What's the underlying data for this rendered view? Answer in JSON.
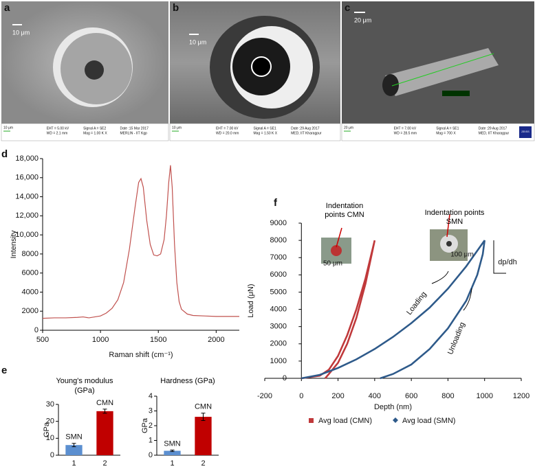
{
  "images": [
    {
      "panel": "a",
      "scale_bar": "10 μm",
      "info": [
        "10 μm",
        "EHT = 5.00 kV",
        "WD = 2.1 mm",
        "Signal A = SE2",
        "Mag = 1.00 K X",
        "Date :15 Mar 2017",
        "MERLIN - IIT Kgp"
      ]
    },
    {
      "panel": "b",
      "scale_bar": "10 μm",
      "info": [
        "10 μm",
        "EHT = 7.00 kV",
        "WD = 20.0 mm",
        "Signal A = SE1",
        "Mag = 1.50 K X",
        "Date :29 Aug 2017",
        "MED, IIT Kharagpur"
      ]
    },
    {
      "panel": "c",
      "scale_bar": "20 μm",
      "info": [
        "20 μm",
        "EHT = 7.00 kV",
        "WD = 28.5 mm",
        "Signal A = SE1",
        "Mag = 700 X",
        "Date :29 Aug 2017",
        "MED, IIT Kharagpur",
        "ZEISS"
      ]
    }
  ],
  "chart_data": [
    {
      "type": "line",
      "panel": "d",
      "x_label": "Raman shift (cm⁻¹)",
      "y_label": "Intensity",
      "xlim": [
        500,
        2200
      ],
      "xticks": [
        500,
        1000,
        1500,
        2000
      ],
      "ylim": [
        0,
        18000
      ],
      "yticks": [
        0,
        2000,
        4000,
        6000,
        8000,
        {
          "value": 10000,
          "label": "10,000"
        },
        {
          "value": 12000,
          "label": "12,000"
        },
        {
          "value": 14000,
          "label": "14,000"
        },
        {
          "value": 16000,
          "label": "16,000"
        },
        {
          "value": 18000,
          "label": "18,000"
        }
      ],
      "series": [
        {
          "color": "#c0504d",
          "x": [
            500,
            600,
            700,
            800,
            850,
            900,
            1000,
            1050,
            1100,
            1150,
            1200,
            1250,
            1300,
            1330,
            1350,
            1370,
            1400,
            1430,
            1460,
            1490,
            1520,
            1550,
            1570,
            1590,
            1605,
            1620,
            1640,
            1660,
            1680,
            1700,
            1750,
            1800,
            1900,
            2000,
            2100,
            2200
          ],
          "values": [
            1250,
            1300,
            1300,
            1350,
            1400,
            1300,
            1500,
            1800,
            2300,
            3200,
            5000,
            8500,
            13000,
            15500,
            15900,
            15000,
            11500,
            9000,
            7900,
            7800,
            8000,
            9500,
            12000,
            15500,
            17300,
            15000,
            9000,
            5000,
            3000,
            2200,
            1700,
            1550,
            1500,
            1450,
            1450,
            1450
          ]
        }
      ]
    },
    {
      "type": "bar",
      "panel": "e",
      "title": "Young's modulus (GPa)",
      "y_label": "GPa",
      "categories": [
        "1",
        "2"
      ],
      "values": [
        6,
        26
      ],
      "errors": [
        1,
        1.2
      ],
      "bar_labels": [
        "SMN",
        "CMN"
      ],
      "colors": [
        "#5b8fd0",
        "#c00000"
      ],
      "ylim": [
        0,
        30
      ],
      "yticks": [
        0,
        10,
        20,
        30
      ]
    },
    {
      "type": "bar",
      "title": "Hardness (GPa)",
      "y_label": "GPa",
      "categories": [
        "1",
        "2"
      ],
      "values": [
        0.3,
        2.6
      ],
      "errors": [
        0.05,
        0.25
      ],
      "bar_labels": [
        "SMN",
        "CMN"
      ],
      "colors": [
        "#5b8fd0",
        "#c00000"
      ],
      "ylim": [
        0,
        4
      ],
      "yticks": [
        0,
        1,
        2,
        3,
        4
      ]
    },
    {
      "type": "scatter",
      "panel": "f",
      "x_label": "Depth (nm)",
      "y_label": "Load (μN)",
      "xlim": [
        -200,
        1200
      ],
      "xticks": [
        -200,
        0,
        200,
        400,
        600,
        800,
        1000,
        1200
      ],
      "ylim": [
        0,
        9000
      ],
      "yticks": [
        0,
        1000,
        2000,
        3000,
        4000,
        5000,
        6000,
        7000,
        8000,
        9000
      ],
      "annotations": [
        "Indentation points CMN",
        "50 μm",
        "Indentation points SMN",
        "100 μm",
        "dp/dh",
        "Loading",
        "Unloading"
      ],
      "series": [
        {
          "name": "Avg load (CMN)",
          "color": "#c0393b",
          "marker": "square",
          "x": [
            0,
            100,
            150,
            200,
            250,
            300,
            350,
            400,
            380,
            350,
            300,
            250,
            200,
            150,
            130
          ],
          "values": [
            0,
            150,
            500,
            1300,
            2500,
            4000,
            5800,
            8000,
            7000,
            5500,
            3500,
            2000,
            900,
            250,
            0
          ]
        },
        {
          "name": "Avg load (SMN)",
          "color": "#2e5a8a",
          "marker": "diamond",
          "x": [
            0,
            100,
            200,
            300,
            400,
            500,
            600,
            700,
            800,
            900,
            1000,
            990,
            960,
            900,
            800,
            700,
            600,
            500,
            430
          ],
          "values": [
            0,
            200,
            600,
            1100,
            1700,
            2400,
            3200,
            4100,
            5200,
            6500,
            8000,
            7200,
            6000,
            4500,
            2900,
            1700,
            800,
            250,
            0
          ]
        }
      ]
    }
  ]
}
